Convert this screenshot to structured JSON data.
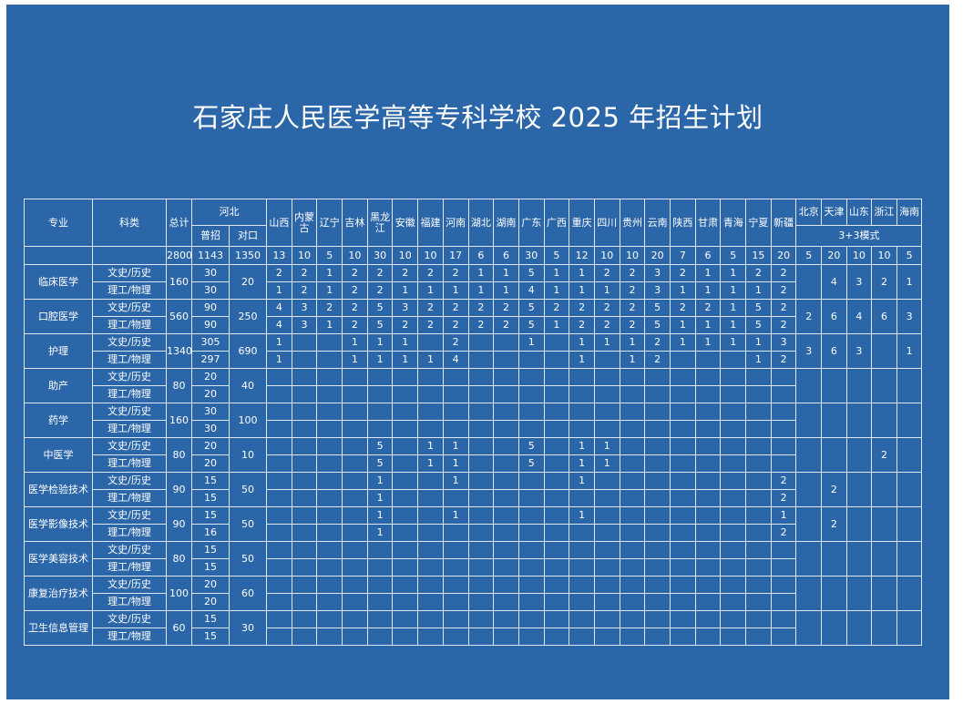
{
  "title": "石家庄人民医学高等专科学校 2025 年招生计划",
  "headers": {
    "major": "专业",
    "subject": "科类",
    "total": "总计",
    "hebei": "河北",
    "hebei_general": "普招",
    "hebei_counterpart": "对口",
    "mode_33": "3+3模式"
  },
  "provinces": [
    "山西",
    "内蒙古",
    "辽宁",
    "吉林",
    "黑龙江",
    "安徽",
    "福建",
    "河南",
    "湖北",
    "湖南",
    "广东",
    "广西",
    "重庆",
    "四川",
    "贵州",
    "云南",
    "陕西",
    "甘肃",
    "青海",
    "宁夏",
    "新疆"
  ],
  "provinces_33": [
    "北京",
    "天津",
    "山东",
    "浙江",
    "海南"
  ],
  "totals": {
    "total": "2800",
    "hebei_general": "1143",
    "hebei_counterpart": "1350",
    "provinces": [
      "13",
      "10",
      "5",
      "10",
      "30",
      "10",
      "10",
      "17",
      "6",
      "6",
      "30",
      "5",
      "12",
      "10",
      "10",
      "20",
      "7",
      "6",
      "5",
      "15",
      "20"
    ],
    "provinces_33": [
      "5",
      "20",
      "10",
      "10",
      "5"
    ]
  },
  "majors": [
    {
      "name": "临床医学",
      "total": "160",
      "counterpart": "20",
      "mode33": [
        "",
        "4",
        "3",
        "2",
        "1"
      ],
      "rows": [
        {
          "subject": "文史/历史",
          "general": "30",
          "prov": [
            "2",
            "2",
            "1",
            "2",
            "2",
            "2",
            "2",
            "2",
            "1",
            "1",
            "5",
            "1",
            "1",
            "2",
            "2",
            "3",
            "2",
            "1",
            "1",
            "2",
            "2"
          ]
        },
        {
          "subject": "理工/物理",
          "general": "30",
          "prov": [
            "1",
            "2",
            "1",
            "2",
            "2",
            "1",
            "1",
            "1",
            "1",
            "1",
            "4",
            "1",
            "1",
            "1",
            "2",
            "3",
            "1",
            "1",
            "1",
            "1",
            "2"
          ]
        }
      ]
    },
    {
      "name": "口腔医学",
      "total": "560",
      "counterpart": "250",
      "mode33": [
        "2",
        "6",
        "4",
        "6",
        "3"
      ],
      "rows": [
        {
          "subject": "文史/历史",
          "general": "90",
          "prov": [
            "4",
            "3",
            "2",
            "2",
            "5",
            "3",
            "2",
            "2",
            "2",
            "2",
            "5",
            "2",
            "2",
            "2",
            "2",
            "5",
            "2",
            "2",
            "1",
            "5",
            "2"
          ]
        },
        {
          "subject": "理工/物理",
          "general": "90",
          "prov": [
            "4",
            "3",
            "1",
            "2",
            "5",
            "2",
            "2",
            "2",
            "2",
            "2",
            "5",
            "1",
            "2",
            "2",
            "2",
            "5",
            "1",
            "1",
            "1",
            "5",
            "2"
          ]
        }
      ]
    },
    {
      "name": "护理",
      "total": "1340",
      "counterpart": "690",
      "mode33": [
        "3",
        "6",
        "3",
        "",
        "1"
      ],
      "rows": [
        {
          "subject": "文史/历史",
          "general": "305",
          "prov": [
            "1",
            "",
            "",
            "1",
            "1",
            "1",
            "",
            "2",
            "",
            "",
            "1",
            "",
            "1",
            "1",
            "1",
            "2",
            "1",
            "1",
            "1",
            "1",
            "3"
          ]
        },
        {
          "subject": "理工/物理",
          "general": "297",
          "prov": [
            "1",
            "",
            "",
            "1",
            "1",
            "1",
            "1",
            "4",
            "",
            "",
            "",
            "",
            "1",
            "",
            "1",
            "2",
            "",
            "",
            "",
            "1",
            "2"
          ]
        }
      ]
    },
    {
      "name": "助产",
      "total": "80",
      "counterpart": "40",
      "mode33": [
        "",
        "",
        "",
        "",
        ""
      ],
      "rows": [
        {
          "subject": "文史/历史",
          "general": "20",
          "prov": [
            "",
            "",
            "",
            "",
            "",
            "",
            "",
            "",
            "",
            "",
            "",
            "",
            "",
            "",
            "",
            "",
            "",
            "",
            "",
            "",
            ""
          ]
        },
        {
          "subject": "理工/物理",
          "general": "20",
          "prov": [
            "",
            "",
            "",
            "",
            "",
            "",
            "",
            "",
            "",
            "",
            "",
            "",
            "",
            "",
            "",
            "",
            "",
            "",
            "",
            "",
            ""
          ]
        }
      ]
    },
    {
      "name": "药学",
      "total": "160",
      "counterpart": "100",
      "mode33": [
        "",
        "",
        "",
        "",
        ""
      ],
      "rows": [
        {
          "subject": "文史/历史",
          "general": "30",
          "prov": [
            "",
            "",
            "",
            "",
            "",
            "",
            "",
            "",
            "",
            "",
            "",
            "",
            "",
            "",
            "",
            "",
            "",
            "",
            "",
            "",
            ""
          ]
        },
        {
          "subject": "理工/物理",
          "general": "30",
          "prov": [
            "",
            "",
            "",
            "",
            "",
            "",
            "",
            "",
            "",
            "",
            "",
            "",
            "",
            "",
            "",
            "",
            "",
            "",
            "",
            "",
            ""
          ]
        }
      ]
    },
    {
      "name": "中医学",
      "total": "80",
      "counterpart": "10",
      "mode33": [
        "",
        "",
        "",
        "2",
        ""
      ],
      "rows": [
        {
          "subject": "文史/历史",
          "general": "20",
          "prov": [
            "",
            "",
            "",
            "",
            "5",
            "",
            "1",
            "1",
            "",
            "",
            "5",
            "",
            "1",
            "1",
            "",
            "",
            "",
            "",
            "",
            "",
            ""
          ]
        },
        {
          "subject": "理工/物理",
          "general": "20",
          "prov": [
            "",
            "",
            "",
            "",
            "5",
            "",
            "1",
            "1",
            "",
            "",
            "5",
            "",
            "1",
            "1",
            "",
            "",
            "",
            "",
            "",
            "",
            ""
          ]
        }
      ]
    },
    {
      "name": "医学检验技术",
      "total": "90",
      "counterpart": "50",
      "mode33": [
        "",
        "2",
        "",
        "",
        ""
      ],
      "rows": [
        {
          "subject": "文史/历史",
          "general": "15",
          "prov": [
            "",
            "",
            "",
            "",
            "1",
            "",
            "",
            "1",
            "",
            "",
            "",
            "",
            "1",
            "",
            "",
            "",
            "",
            "",
            "",
            "",
            "2"
          ]
        },
        {
          "subject": "理工/物理",
          "general": "15",
          "prov": [
            "",
            "",
            "",
            "",
            "1",
            "",
            "",
            "",
            "",
            "",
            "",
            "",
            "",
            "",
            "",
            "",
            "",
            "",
            "",
            "",
            "2"
          ]
        }
      ]
    },
    {
      "name": "医学影像技术",
      "total": "90",
      "counterpart": "50",
      "mode33": [
        "",
        "2",
        "",
        "",
        ""
      ],
      "rows": [
        {
          "subject": "文史/历史",
          "general": "15",
          "prov": [
            "",
            "",
            "",
            "",
            "1",
            "",
            "",
            "1",
            "",
            "",
            "",
            "",
            "1",
            "",
            "",
            "",
            "",
            "",
            "",
            "",
            "1"
          ]
        },
        {
          "subject": "理工/物理",
          "general": "16",
          "prov": [
            "",
            "",
            "",
            "",
            "1",
            "",
            "",
            "",
            "",
            "",
            "",
            "",
            "",
            "",
            "",
            "",
            "",
            "",
            "",
            "",
            "2"
          ]
        }
      ]
    },
    {
      "name": "医学美容技术",
      "total": "80",
      "counterpart": "50",
      "mode33": [
        "",
        "",
        "",
        "",
        ""
      ],
      "rows": [
        {
          "subject": "文史/历史",
          "general": "15",
          "prov": [
            "",
            "",
            "",
            "",
            "",
            "",
            "",
            "",
            "",
            "",
            "",
            "",
            "",
            "",
            "",
            "",
            "",
            "",
            "",
            "",
            ""
          ]
        },
        {
          "subject": "理工/物理",
          "general": "15",
          "prov": [
            "",
            "",
            "",
            "",
            "",
            "",
            "",
            "",
            "",
            "",
            "",
            "",
            "",
            "",
            "",
            "",
            "",
            "",
            "",
            "",
            ""
          ]
        }
      ]
    },
    {
      "name": "康复治疗技术",
      "total": "100",
      "counterpart": "60",
      "mode33": [
        "",
        "",
        "",
        "",
        ""
      ],
      "rows": [
        {
          "subject": "文史/历史",
          "general": "20",
          "prov": [
            "",
            "",
            "",
            "",
            "",
            "",
            "",
            "",
            "",
            "",
            "",
            "",
            "",
            "",
            "",
            "",
            "",
            "",
            "",
            "",
            ""
          ]
        },
        {
          "subject": "理工/物理",
          "general": "20",
          "prov": [
            "",
            "",
            "",
            "",
            "",
            "",
            "",
            "",
            "",
            "",
            "",
            "",
            "",
            "",
            "",
            "",
            "",
            "",
            "",
            "",
            ""
          ]
        }
      ]
    },
    {
      "name": "卫生信息管理",
      "total": "60",
      "counterpart": "30",
      "mode33": [
        "",
        "",
        "",
        "",
        ""
      ],
      "rows": [
        {
          "subject": "文史/历史",
          "general": "15",
          "prov": [
            "",
            "",
            "",
            "",
            "",
            "",
            "",
            "",
            "",
            "",
            "",
            "",
            "",
            "",
            "",
            "",
            "",
            "",
            "",
            "",
            ""
          ]
        },
        {
          "subject": "理工/物理",
          "general": "15",
          "prov": [
            "",
            "",
            "",
            "",
            "",
            "",
            "",
            "",
            "",
            "",
            "",
            "",
            "",
            "",
            "",
            "",
            "",
            "",
            "",
            "",
            ""
          ]
        }
      ]
    }
  ]
}
